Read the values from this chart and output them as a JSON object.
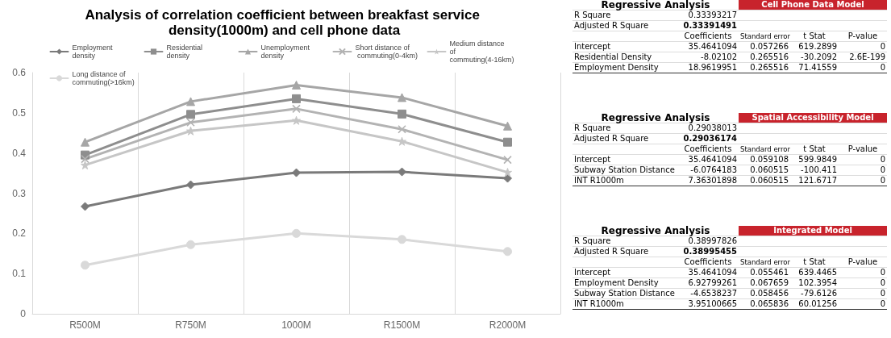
{
  "chart_data": [
    {
      "type": "line",
      "title": "Analysis of correlation coefficient between breakfast service density(1000m) and cell phone data",
      "categories": [
        "R500M",
        "R750M",
        "1000M",
        "R1500M",
        "R2000M"
      ],
      "series": [
        {
          "name": "Employment density",
          "color": "#7a7a7a",
          "marker": "diamond",
          "values": [
            0.267,
            0.321,
            0.351,
            0.353,
            0.337
          ]
        },
        {
          "name": "Residential density",
          "color": "#8e8e8e",
          "marker": "square",
          "values": [
            0.395,
            0.496,
            0.535,
            0.497,
            0.427
          ]
        },
        {
          "name": "Unemployment density",
          "color": "#a6a6a6",
          "marker": "triangle",
          "values": [
            0.427,
            0.528,
            0.569,
            0.538,
            0.467
          ]
        },
        {
          "name": "Short distance of commuting(0-4km)",
          "color": "#b3b3b3",
          "marker": "cross",
          "values": [
            0.385,
            0.476,
            0.51,
            0.459,
            0.383
          ]
        },
        {
          "name": "Medium distance of commuting(4-16km)",
          "color": "#c6c6c6",
          "marker": "star",
          "values": [
            0.37,
            0.455,
            0.481,
            0.429,
            0.352
          ]
        },
        {
          "name": "Long distance of commuting(>16km)",
          "color": "#d9d9d9",
          "marker": "circle",
          "values": [
            0.121,
            0.172,
            0.2,
            0.185,
            0.155
          ]
        }
      ],
      "ylim": [
        0,
        0.6
      ],
      "yticks": [
        0,
        0.1,
        0.2,
        0.3,
        0.4,
        0.5,
        0.6
      ],
      "grid": "x",
      "legend": "top",
      "line_style": "solid"
    },
    {
      "type": "other",
      "title": "Regressive Analysis",
      "subtitle": "Cell Phone Data Model",
      "categories": [
        "Coefficients",
        "Standard error",
        "t Stat",
        "P-value"
      ],
      "y_categories": [
        "R Square",
        "Adjusted R Square",
        "Intercept",
        "Residential Density",
        "Employment Density"
      ],
      "cell_labels": [
        [
          "0.33393217",
          null,
          null,
          null
        ],
        [
          "0.33391491",
          null,
          null,
          null
        ],
        [
          "35.4641094",
          "0.057266",
          "619.2899",
          "0"
        ],
        [
          "-8.02102",
          "0.265516",
          "-30.2092",
          "2.6E-199"
        ],
        [
          "18.9619951",
          "0.265516",
          "71.41559",
          "0"
        ]
      ]
    },
    {
      "type": "other",
      "title": "Regressive Analysis",
      "subtitle": "Spatial Accessibility Model",
      "categories": [
        "Coefficients",
        "Standard error",
        "t Stat",
        "P-value"
      ],
      "y_categories": [
        "R Square",
        "Adjusted R Square",
        "Intercept",
        "Subway Station Distance",
        "INT R1000m"
      ],
      "cell_labels": [
        [
          "0.29038013",
          null,
          null,
          null
        ],
        [
          "0.29036174",
          null,
          null,
          null
        ],
        [
          "35.4641094",
          "0.059108",
          "599.9849",
          "0"
        ],
        [
          "-6.0764183",
          "0.060515",
          "-100.411",
          "0"
        ],
        [
          "7.36301898",
          "0.060515",
          "121.6717",
          "0"
        ]
      ]
    },
    {
      "type": "other",
      "title": "Regressive Analysis",
      "subtitle": "Integrated Model",
      "categories": [
        "Coefficients",
        "Standard error",
        "t Stat",
        "P-value"
      ],
      "y_categories": [
        "R Square",
        "Adjusted R Square",
        "Intercept",
        "Employment Density",
        "Subway Station Distance",
        "INT R1000m"
      ],
      "cell_labels": [
        [
          "0.38997826",
          null,
          null,
          null
        ],
        [
          "0.38995455",
          null,
          null,
          null
        ],
        [
          "35.4641094",
          "0.055461",
          "639.4465",
          "0"
        ],
        [
          "6.92799261",
          "0.067659",
          "102.3954",
          "0"
        ],
        [
          "-4.6538237",
          "0.058456",
          "-79.6126",
          "0"
        ],
        [
          "3.95100665",
          "0.065836",
          "60.01256",
          "0"
        ]
      ]
    }
  ]
}
